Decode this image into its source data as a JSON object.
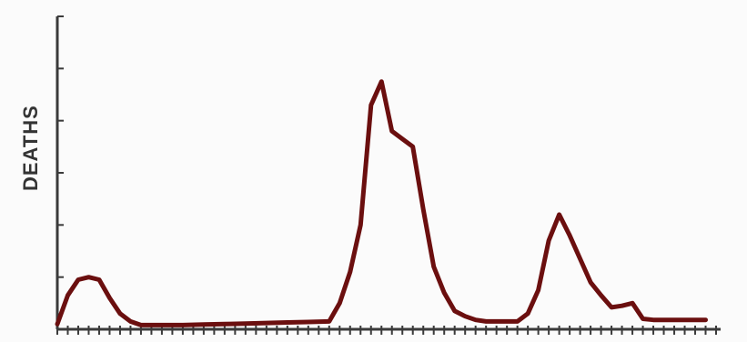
{
  "chart_data": {
    "type": "line",
    "title": "",
    "xlabel": "",
    "ylabel": "DEATHS",
    "x_tick_count": 64,
    "y_tick_count": 6,
    "xlim": [
      0,
      63
    ],
    "ylim": [
      0,
      6
    ],
    "grid": false,
    "legend": "none",
    "colors": {
      "line": "#6b0f0f",
      "axis": "#3a3a3a",
      "background": "#fbfbfb"
    },
    "series": [
      {
        "x": [
          0,
          1,
          2,
          3,
          4,
          5,
          6,
          7,
          8,
          9,
          10,
          11,
          12,
          14,
          16,
          18,
          20,
          22,
          24,
          26,
          27,
          28,
          29,
          30,
          31,
          32,
          33,
          34,
          35,
          36,
          37,
          38,
          39,
          40,
          41,
          42,
          43,
          44,
          45,
          46,
          47,
          48,
          49,
          50,
          51,
          52,
          53,
          54,
          55,
          56,
          57,
          58,
          59,
          60,
          61,
          62
        ],
        "values": [
          0.1,
          0.65,
          0.95,
          1.0,
          0.95,
          0.6,
          0.3,
          0.15,
          0.08,
          0.08,
          0.08,
          0.08,
          0.08,
          0.09,
          0.1,
          0.11,
          0.12,
          0.13,
          0.14,
          0.15,
          0.5,
          1.1,
          2.0,
          4.3,
          4.75,
          3.8,
          3.65,
          3.5,
          2.3,
          1.2,
          0.7,
          0.35,
          0.25,
          0.18,
          0.15,
          0.15,
          0.15,
          0.15,
          0.3,
          0.75,
          1.7,
          2.2,
          1.8,
          1.35,
          0.9,
          0.65,
          0.42,
          0.45,
          0.5,
          0.2,
          0.18,
          0.18,
          0.18,
          0.18,
          0.18,
          0.18
        ]
      }
    ]
  }
}
